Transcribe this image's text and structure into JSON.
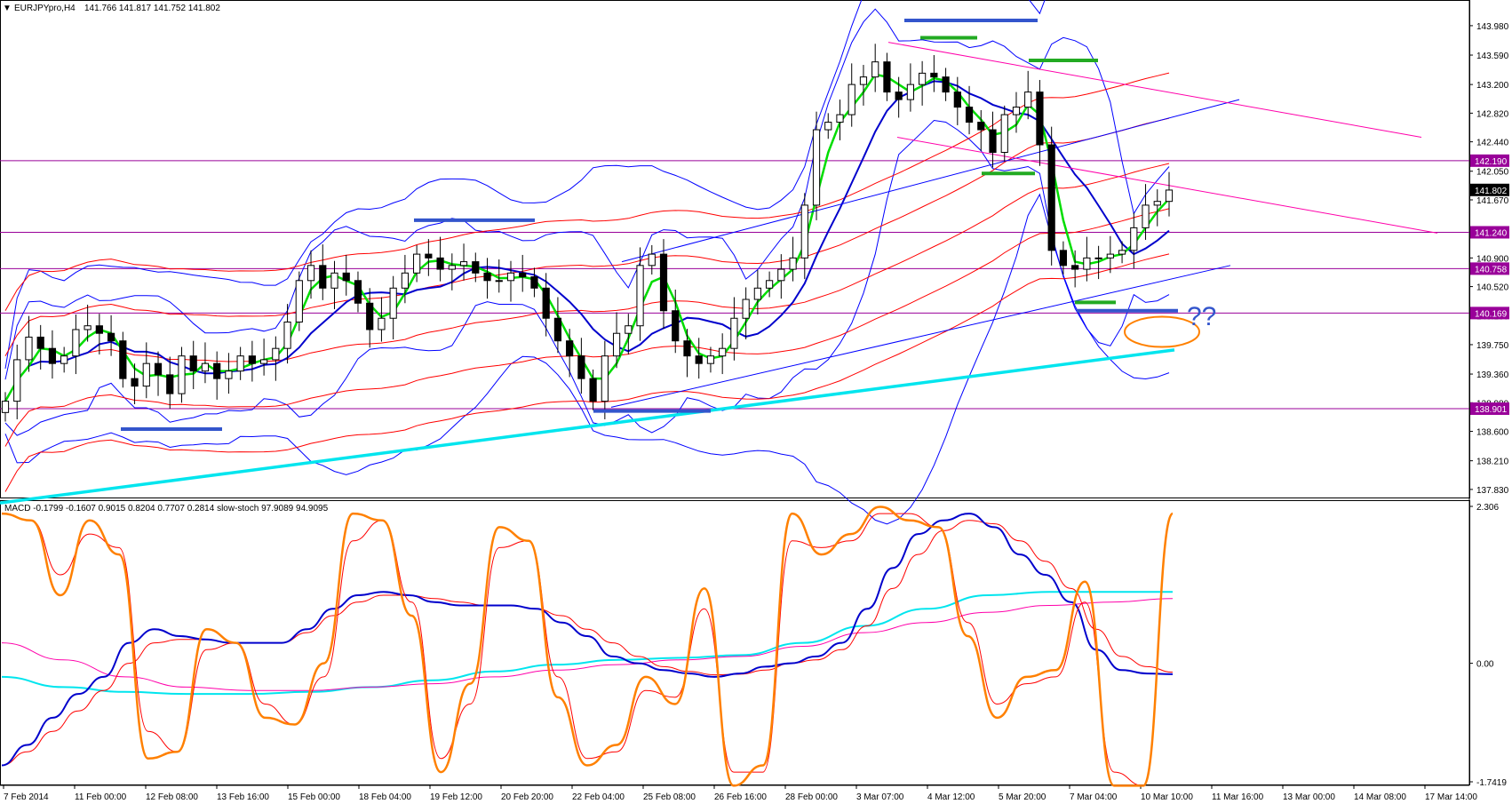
{
  "window": {
    "symbol_header": "EURJPYpro,H4",
    "ohlc": "141.766 141.817 141.752 141.802"
  },
  "colors": {
    "background": "#ffffff",
    "bull_candle": "#ffffff",
    "bear_candle": "#000000",
    "bollinger": "#0000ff",
    "ma_fast": "#00dd00",
    "ma_mid": "#0000cc",
    "envelope": "#ff0000",
    "trendline_pink": "#ff00aa",
    "level_line": "#990099",
    "cyan_ma": "#00e5ee",
    "stoch_main": "#ff8000",
    "stoch_signal": "#ff0000",
    "macd_main": "#0000cc",
    "macd_signal": "#ff0000",
    "annotation_blue": "#3355cc",
    "annotation_green": "#22aa22",
    "annotation_orange": "#ff8000"
  },
  "annotations": {
    "question_marks": "??"
  },
  "chart_data": [
    {
      "type": "candlestick",
      "title": "EURJPYpro,H4",
      "y_ticks": [
        "143.980",
        "143.590",
        "143.200",
        "142.820",
        "142.440",
        "142.050",
        "141.670",
        "141.280",
        "140.900",
        "140.520",
        "140.130",
        "139.750",
        "139.360",
        "138.980",
        "138.600",
        "138.210",
        "137.830"
      ],
      "ylim": [
        137.77,
        144.25
      ],
      "price_levels": [
        {
          "label": "142.190",
          "value": 142.19,
          "highlight": false
        },
        {
          "label": "141.802",
          "value": 141.802,
          "highlight": true
        },
        {
          "label": "141.240",
          "value": 141.24,
          "highlight": false
        },
        {
          "label": "140.758",
          "value": 140.758,
          "highlight": false
        },
        {
          "label": "140.169",
          "value": 140.169,
          "highlight": false
        },
        {
          "label": "138.901",
          "value": 138.901,
          "highlight": false
        }
      ],
      "x_labels": [
        "7 Feb 2014",
        "11 Feb 00:00",
        "12 Feb 08:00",
        "13 Feb 16:00",
        "15 Feb 00:00",
        "18 Feb 04:00",
        "19 Feb 12:00",
        "20 Feb 20:00",
        "22 Feb 04:00",
        "25 Feb 08:00",
        "26 Feb 16:00",
        "28 Feb 00:00",
        "3 Mar 07:00",
        "4 Mar 12:00",
        "5 Mar 20:00",
        "7 Mar 04:00",
        "10 Mar 10:00",
        "11 Mar 16:00",
        "13 Mar 00:00",
        "14 Mar 08:00",
        "17 Mar 14:00"
      ],
      "close_series": [
        139.0,
        139.55,
        139.85,
        139.7,
        139.5,
        139.6,
        139.95,
        140.0,
        139.9,
        139.8,
        139.3,
        139.2,
        139.5,
        139.35,
        139.1,
        139.6,
        139.4,
        139.5,
        139.3,
        139.4,
        139.6,
        139.5,
        139.55,
        139.7,
        140.05,
        140.6,
        140.8,
        140.5,
        140.7,
        140.6,
        140.3,
        139.95,
        140.1,
        140.5,
        140.7,
        140.95,
        140.9,
        140.75,
        140.8,
        140.85,
        140.7,
        140.6,
        140.6,
        140.7,
        140.65,
        140.5,
        140.1,
        139.8,
        139.6,
        139.3,
        139.0,
        139.6,
        139.9,
        140.0,
        140.8,
        140.95,
        140.2,
        139.8,
        139.6,
        139.5,
        139.6,
        139.7,
        140.1,
        140.35,
        140.5,
        140.6,
        140.75,
        140.9,
        141.6,
        142.6,
        142.7,
        142.8,
        143.2,
        143.3,
        143.5,
        143.1,
        143.0,
        143.2,
        143.35,
        143.3,
        143.1,
        142.9,
        142.7,
        142.6,
        142.3,
        142.8,
        142.9,
        143.1,
        142.4,
        141.0,
        140.8,
        140.75,
        140.9,
        140.9,
        140.95,
        141.0,
        141.3,
        141.6,
        141.65,
        141.8
      ]
    },
    {
      "type": "line",
      "title": "MACD",
      "header": "MACD -0.1799 -0.1607 0.9015 0.8204 0.7707 0.2814 slow-stoch 97.9089 94.9095",
      "y_ticks": [
        "2.306",
        "0.00",
        "-1.7419"
      ],
      "ylim": [
        -1.7419,
        2.306
      ],
      "series": [
        {
          "role": "macd_main",
          "values": [
            -1.5,
            -1.2,
            -0.8,
            -0.45,
            -0.2,
            0.3,
            0.5,
            0.4,
            0.35,
            0.3,
            0.3,
            0.3,
            0.5,
            0.8,
            1.0,
            1.05,
            1.0,
            0.9,
            0.85,
            0.85,
            0.85,
            0.8,
            0.6,
            0.4,
            0.1,
            0.0,
            -0.1,
            -0.15,
            -0.2,
            -0.15,
            -0.05,
            0.0,
            0.1,
            0.3,
            0.8,
            1.4,
            1.9,
            2.1,
            2.2,
            2.0,
            1.6,
            1.3,
            0.9,
            0.2,
            -0.1,
            -0.15,
            -0.16
          ]
        },
        {
          "role": "macd_signal",
          "values": [
            -1.5,
            -1.3,
            -1.0,
            -0.7,
            -0.4,
            0.0,
            0.3,
            0.35,
            0.35,
            0.3,
            0.3,
            0.3,
            0.45,
            0.7,
            0.9,
            1.0,
            1.0,
            0.95,
            0.9,
            0.85,
            0.85,
            0.8,
            0.7,
            0.5,
            0.3,
            0.1,
            -0.05,
            -0.12,
            -0.17,
            -0.16,
            -0.1,
            0.0,
            0.05,
            0.2,
            0.55,
            1.1,
            1.6,
            1.95,
            2.1,
            2.05,
            1.8,
            1.5,
            1.1,
            0.5,
            0.1,
            -0.05,
            -0.13
          ]
        },
        {
          "role": "stoch_main",
          "values": [
            2.2,
            2.1,
            1.0,
            2.1,
            1.6,
            -1.4,
            -1.3,
            0.5,
            0.3,
            -0.8,
            -0.9,
            0.0,
            2.2,
            2.1,
            0.7,
            -1.6,
            -0.3,
            2.0,
            1.8,
            -0.5,
            -1.5,
            -1.2,
            -0.2,
            -0.6,
            1.1,
            -1.8,
            -1.5,
            2.2,
            1.6,
            1.9,
            2.3,
            2.1,
            2.0,
            0.4,
            -0.8,
            -0.2,
            -0.1,
            1.2,
            -1.8,
            -1.8,
            2.2
          ]
        },
        {
          "role": "stoch_signal",
          "values": [
            2.2,
            2.1,
            1.3,
            1.9,
            1.7,
            -1.0,
            -1.3,
            0.2,
            0.3,
            -0.6,
            -0.9,
            -0.2,
            1.8,
            2.1,
            0.9,
            -1.4,
            -0.6,
            1.7,
            1.8,
            -0.2,
            -1.4,
            -1.3,
            -0.4,
            -0.5,
            0.8,
            -1.6,
            -1.6,
            1.8,
            1.7,
            1.8,
            2.2,
            2.2,
            2.0,
            0.6,
            -0.6,
            -0.3,
            -0.2,
            0.9,
            -1.6,
            -1.8,
            2.2
          ]
        },
        {
          "role": "cyan_ma",
          "values": [
            -0.2,
            -0.35,
            -0.42,
            -0.45,
            -0.45,
            -0.42,
            -0.35,
            -0.25,
            -0.12,
            -0.02,
            0.05,
            0.08,
            0.12,
            0.3,
            0.55,
            0.8,
            1.0,
            1.05,
            1.05,
            1.05
          ]
        },
        {
          "role": "pink_ma",
          "values": [
            0.3,
            0.05,
            -0.2,
            -0.35,
            -0.4,
            -0.4,
            -0.35,
            -0.3,
            -0.2,
            -0.1,
            -0.02,
            0.05,
            0.1,
            0.25,
            0.45,
            0.6,
            0.75,
            0.85,
            0.9,
            0.95
          ]
        }
      ]
    }
  ]
}
